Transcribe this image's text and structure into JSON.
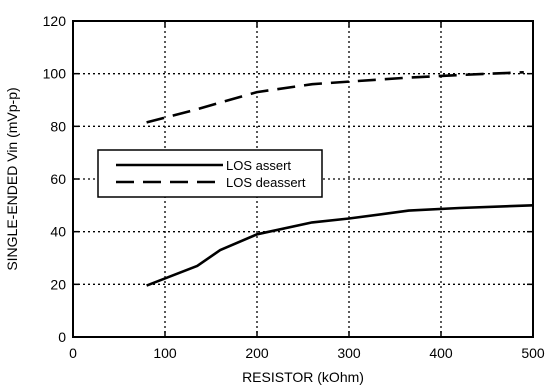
{
  "chart_data": {
    "type": "line",
    "title": "",
    "xlabel": "RESISTOR (kOhm)",
    "ylabel": "SINGLE-ENDED Vin (mVp-p)",
    "xlim": [
      0,
      500
    ],
    "ylim": [
      0,
      120
    ],
    "x_ticks": [
      0,
      100,
      200,
      300,
      400,
      500
    ],
    "y_ticks": [
      0,
      20,
      40,
      60,
      80,
      100,
      120
    ],
    "x_tick_labels": [
      "0",
      "100",
      "200",
      "300",
      "400",
      "500"
    ],
    "y_tick_labels": [
      "0",
      "20",
      "40",
      "60",
      "80",
      "100",
      "120"
    ],
    "grid": true,
    "legend_position": "middle-left",
    "series": [
      {
        "name": "LOS assert",
        "style": "solid",
        "color": "#000000",
        "points": [
          [
            80,
            19.5
          ],
          [
            135,
            27
          ],
          [
            160,
            33
          ],
          [
            200,
            39
          ],
          [
            260,
            43.5
          ],
          [
            300,
            45
          ],
          [
            365,
            48
          ],
          [
            420,
            49
          ],
          [
            500,
            50
          ]
        ]
      },
      {
        "name": "LOS deassert",
        "style": "dashed",
        "color": "#000000",
        "points": [
          [
            80,
            81.5
          ],
          [
            130,
            86
          ],
          [
            160,
            89
          ],
          [
            200,
            93
          ],
          [
            260,
            96
          ],
          [
            300,
            97
          ],
          [
            365,
            98.5
          ],
          [
            420,
            99.5
          ],
          [
            490,
            100.5
          ]
        ]
      }
    ]
  }
}
